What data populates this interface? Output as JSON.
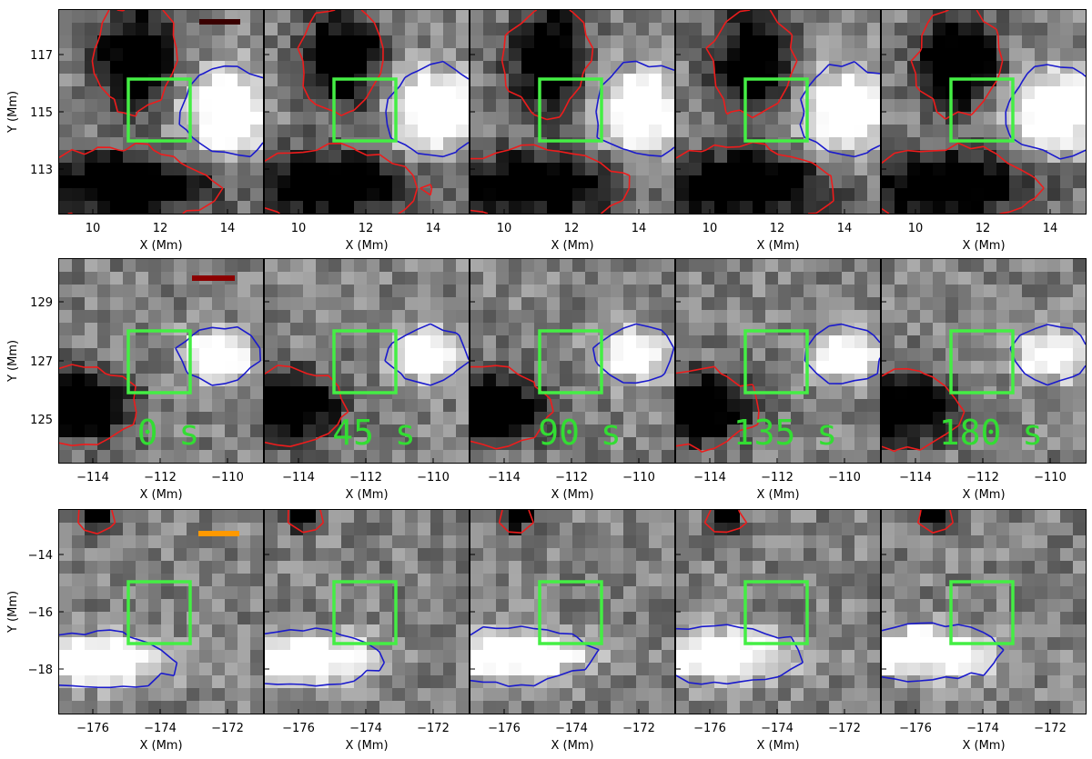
{
  "figure": {
    "rows": [
      {
        "id": "row-1",
        "x_label": "X (Mm)",
        "y_label": "Y (Mm)",
        "x_ticks": [
          "10",
          "12",
          "14"
        ],
        "y_ticks": [
          "117",
          "115",
          "113"
        ],
        "scale_bar_color": "#3a0000"
      },
      {
        "id": "row-2",
        "x_label": "X (Mm)",
        "y_label": "Y (Mm)",
        "x_ticks": [
          "−114",
          "−112",
          "−110"
        ],
        "y_ticks": [
          "129",
          "127",
          "125"
        ],
        "scale_bar_color": "#8b0000"
      },
      {
        "id": "row-3",
        "x_label": "X (Mm)",
        "y_label": "Y (Mm)",
        "x_ticks": [
          "−176",
          "−174",
          "−172"
        ],
        "y_ticks": [
          "−14",
          "−16",
          "−18"
        ],
        "scale_bar_color": "#ff9900"
      }
    ],
    "time_labels": [
      "0 s",
      "45 s",
      "90 s",
      "135 s",
      "180 s"
    ],
    "colors": {
      "negative_contour": "#ee1c1c",
      "positive_contour": "#1a1acc",
      "box": "#44ee44",
      "time_label": "#33dd33"
    }
  }
}
